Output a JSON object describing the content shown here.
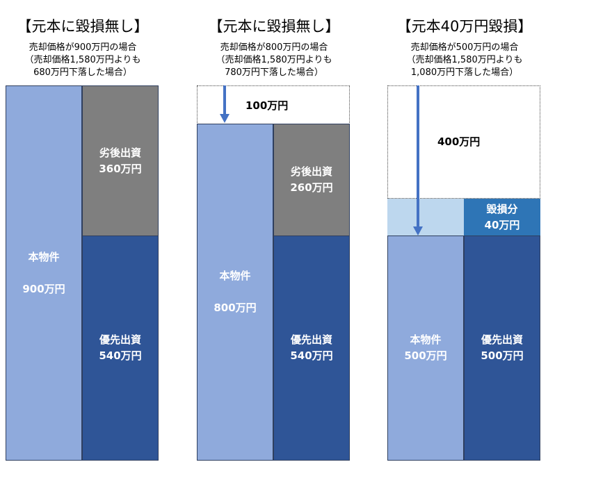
{
  "panels": [
    {
      "title": "【元本に毀損無し】",
      "sub": [
        "売却価格が900万円の場合",
        "（売却価格1,580万円よりも",
        "680万円下落した場合）"
      ],
      "property": {
        "label": "本物件",
        "value": "900万円"
      },
      "junior": {
        "label": "劣後出資",
        "value": "360万円"
      },
      "senior": {
        "label": "優先出資",
        "value": "540万円"
      }
    },
    {
      "title": "【元本に毀損無し】",
      "sub": [
        "売却価格が800万円の場合",
        "（売却価格1,580万円よりも",
        "780万円下落した場合）"
      ],
      "drop": "100万円",
      "property": {
        "label": "本物件",
        "value": "800万円"
      },
      "junior": {
        "label": "劣後出資",
        "value": "260万円"
      },
      "senior": {
        "label": "優先出資",
        "value": "540万円"
      }
    },
    {
      "title": "【元本40万円毀損】",
      "sub": [
        "売却価格が500万円の場合",
        "（売却価格1,580万円よりも",
        "1,080万円下落した場合）"
      ],
      "drop": "400万円",
      "loss": {
        "label": "毀損分",
        "value": "40万円"
      },
      "property": {
        "label": "本物件",
        "value": "500万円"
      },
      "senior": {
        "label": "優先出資",
        "value": "500万円"
      }
    }
  ],
  "colors": {
    "property": "#8faadc",
    "junior": "#7f7f7f",
    "senior": "#2f5597",
    "loss_property": "#bdd7ee",
    "loss_senior": "#2e75b6",
    "arrow": "#4472c4"
  }
}
